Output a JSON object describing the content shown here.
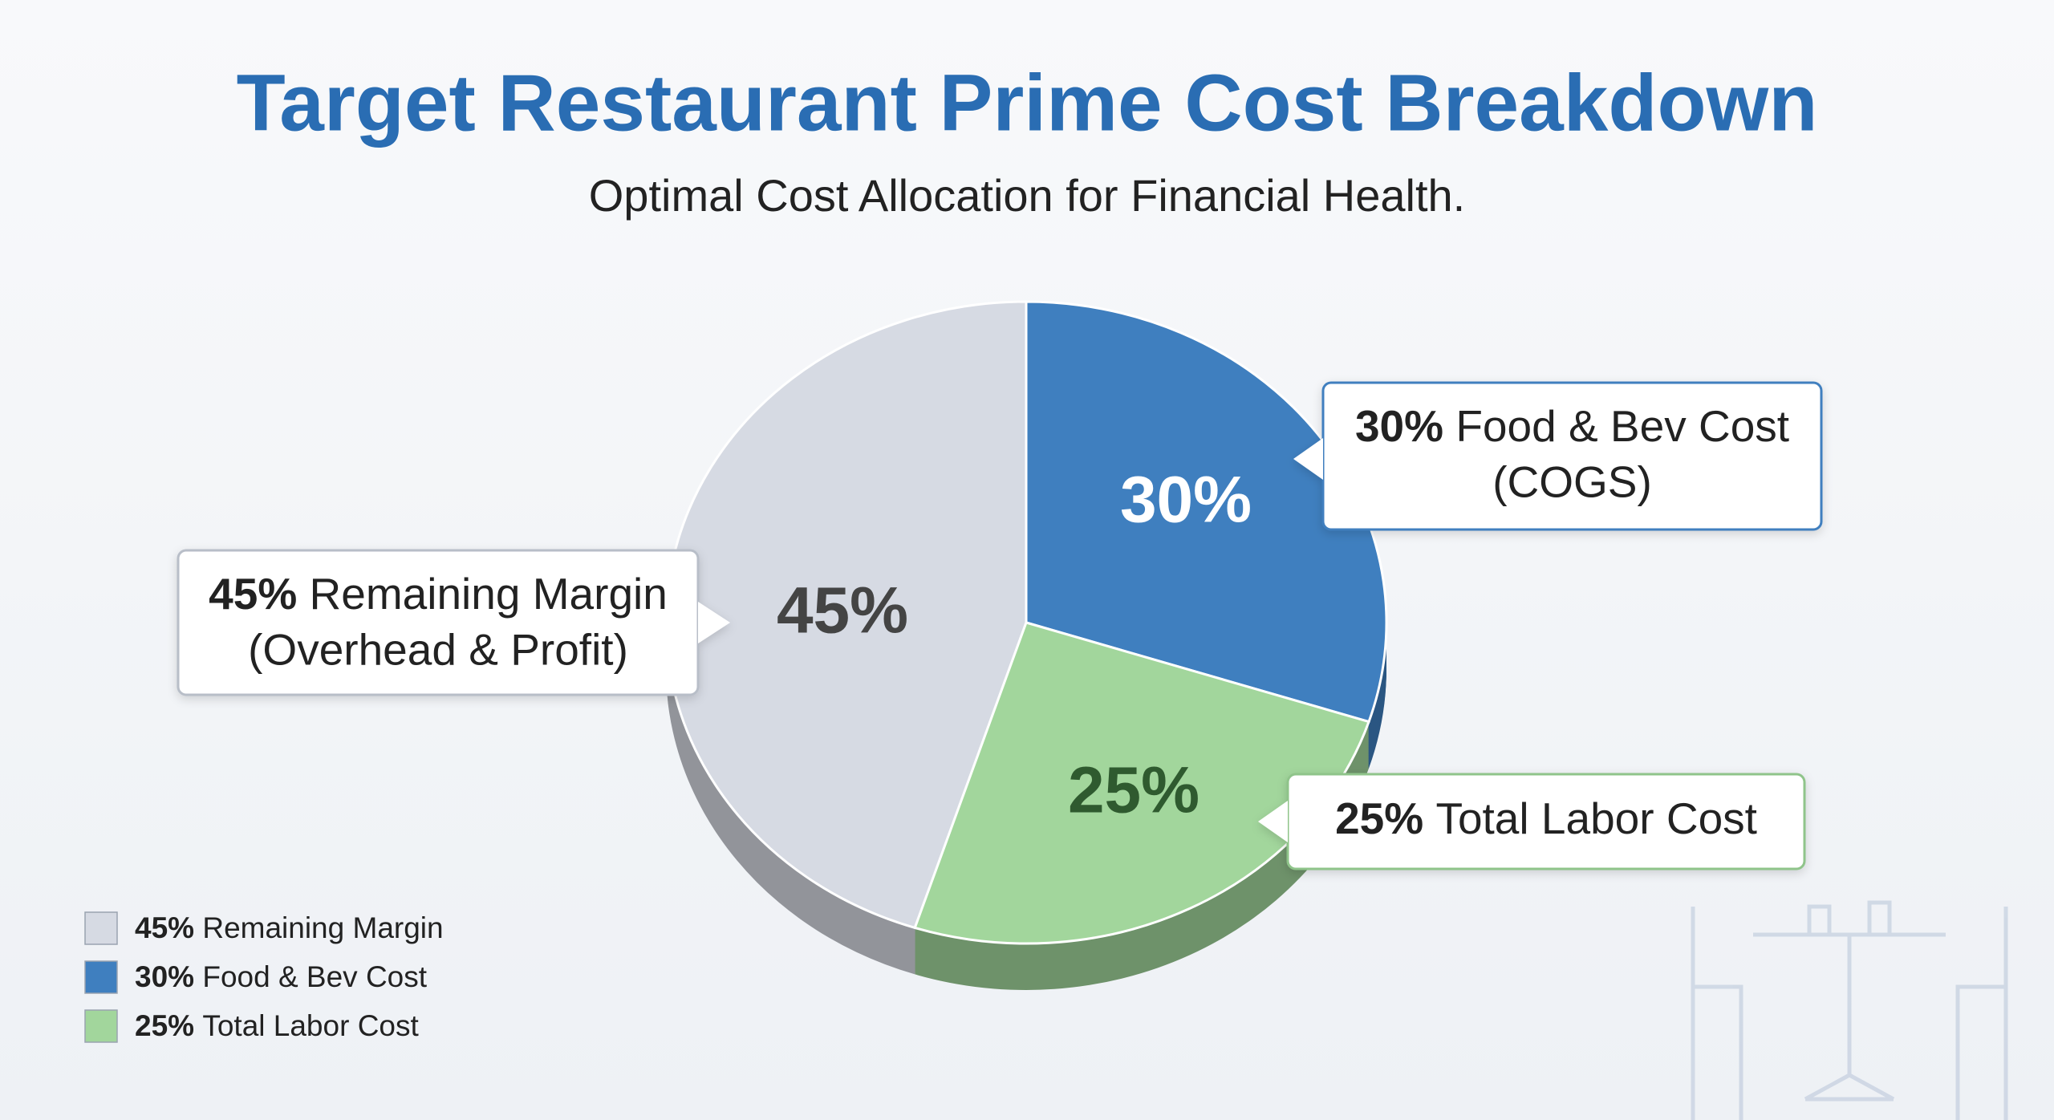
{
  "chart_data": {
    "type": "pie",
    "title": "Target Restaurant Prime Cost Breakdown",
    "subtitle": "Optimal Cost Allocation for Financial Health.",
    "categories": [
      "Remaining Margin",
      "Food & Bev Cost",
      "Total Labor Cost"
    ],
    "values": [
      45,
      30,
      25
    ],
    "value_labels": [
      "45%",
      "30%",
      "25%"
    ],
    "colors": [
      "#d6dae3",
      "#3f7fbf",
      "#a2d69c"
    ],
    "callout_notes": [
      "(Overhead & Profit)",
      "(COGS)"
    ],
    "legend": "bottom-left"
  }
}
